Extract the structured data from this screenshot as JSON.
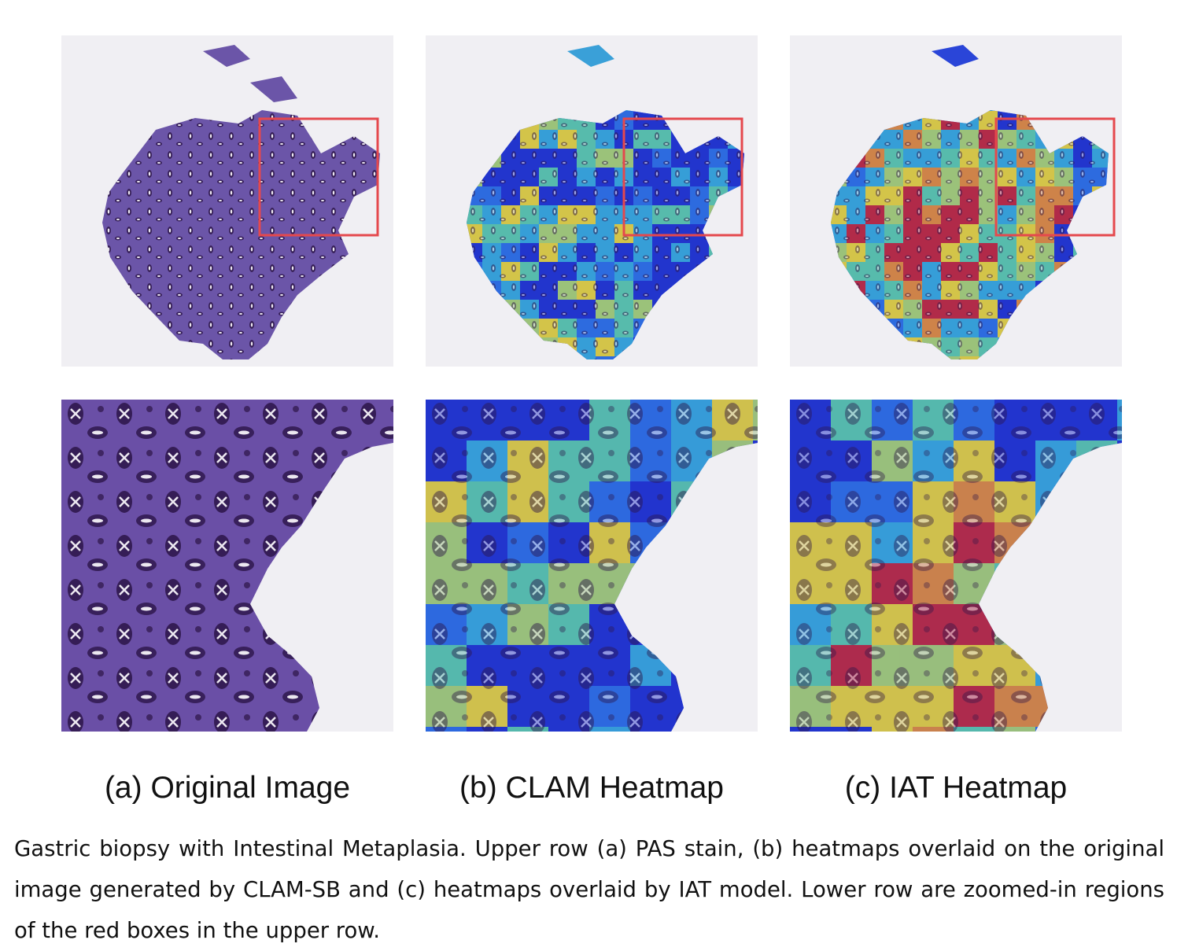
{
  "figure": {
    "panels": [
      {
        "id": "a",
        "label": "(a) Original Image"
      },
      {
        "id": "b",
        "label": "(b) CLAM Heatmap"
      },
      {
        "id": "c",
        "label": "(c) IAT Heatmap"
      }
    ],
    "caption": "Gastric biopsy with Intestinal Metaplasia. Upper row (a) PAS stain, (b) heatmaps overlaid on the original image generated by CLAM-SB and (c) heatmaps overlaid by IAT model. Lower row are zoomed-in regions of the red boxes in the upper row.",
    "colors": {
      "tissue": "#6b55a8",
      "gland": "#2c1448",
      "background": "#f0eff3",
      "roi_box": "#e5484d",
      "heat_low": "#2233cc",
      "heat_mid": "#e6d23a",
      "heat_high": "#c0283a"
    }
  }
}
